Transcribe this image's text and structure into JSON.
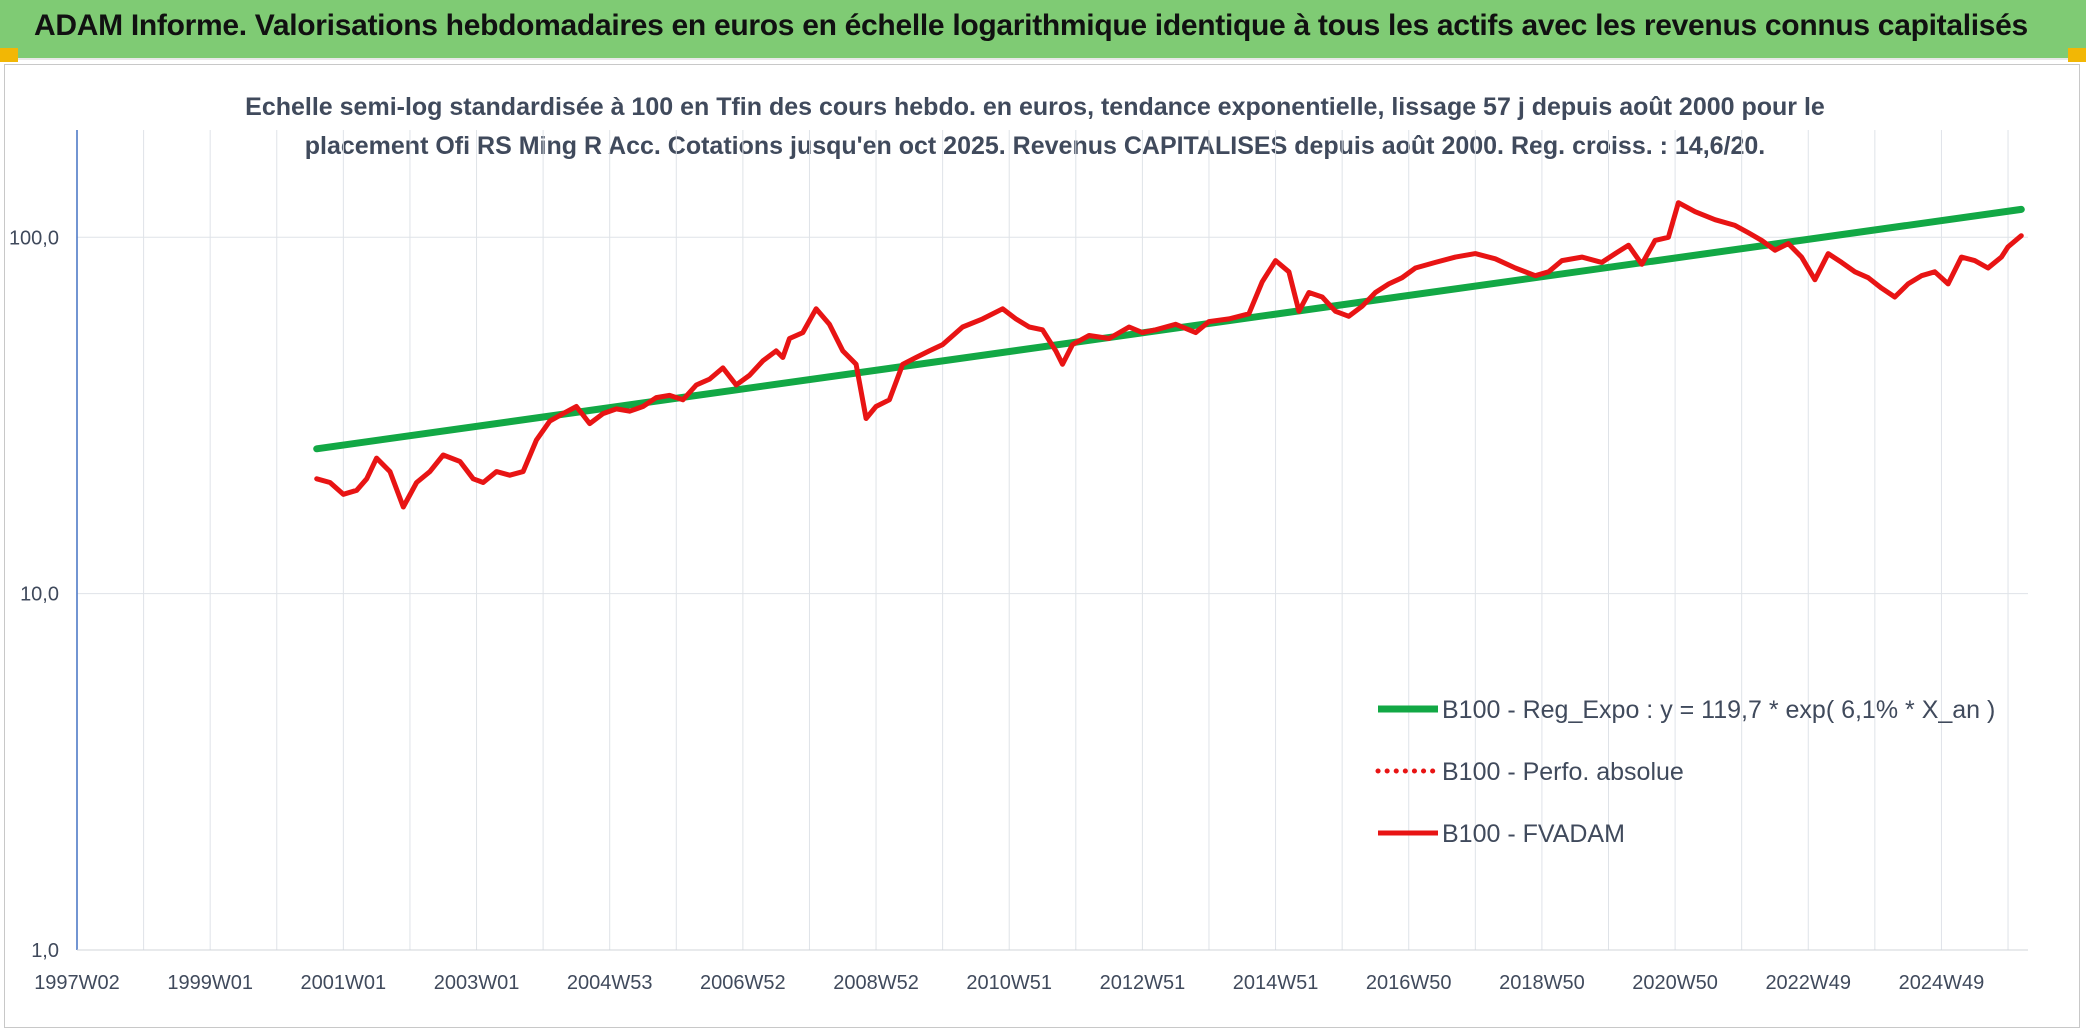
{
  "header": {
    "title": "ADAM Informe. Valorisations hebdomadaires en euros en échelle logarithmique identique à tous les actifs avec les revenus connus capitalisés"
  },
  "colors": {
    "banner": "#7fcb74",
    "corner": "#f2b705",
    "reg": "#12a845",
    "fvadam": "#e81414",
    "perfo": "#e81414"
  },
  "chart_data": {
    "type": "line",
    "title_line1": "Echelle semi-log standardisée à 100 en Tfin des cours hebdo. en euros, tendance exponentielle, lissage 57 j depuis août 2000 pour le",
    "title_line2": "placement Ofi RS Ming R Acc. Cotations jusqu'en oct 2025. Revenus CAPITALISES depuis août 2000. Reg. croiss. : 14,6/20.",
    "y_scale": "log",
    "ylim": [
      1,
      200
    ],
    "xlim": [
      1997.0,
      2026.3
    ],
    "y_ticks": [
      {
        "value": 1,
        "label": "1,0"
      },
      {
        "value": 10,
        "label": "10,0"
      },
      {
        "value": 100,
        "label": "100,0"
      }
    ],
    "x_ticks": [
      {
        "value": 1997.0,
        "label": "1997W02"
      },
      {
        "value": 1999.0,
        "label": "1999W01"
      },
      {
        "value": 2001.0,
        "label": "2001W01"
      },
      {
        "value": 2003.0,
        "label": "2003W01"
      },
      {
        "value": 2005.0,
        "label": "2004W53"
      },
      {
        "value": 2007.0,
        "label": "2006W52"
      },
      {
        "value": 2009.0,
        "label": "2008W52"
      },
      {
        "value": 2011.0,
        "label": "2010W51"
      },
      {
        "value": 2013.0,
        "label": "2012W51"
      },
      {
        "value": 2015.0,
        "label": "2014W51"
      },
      {
        "value": 2017.0,
        "label": "2016W50"
      },
      {
        "value": 2019.0,
        "label": "2018W50"
      },
      {
        "value": 2021.0,
        "label": "2020W50"
      },
      {
        "value": 2023.0,
        "label": "2022W49"
      },
      {
        "value": 2025.0,
        "label": "2024W49"
      }
    ],
    "grid": "vertical and horizontal gridlines",
    "legend_position": "bottom-right",
    "series": [
      {
        "name": "B100 - Reg_Expo : y = 119,7 * exp( 6,1% *  X_an )",
        "style": "solid",
        "color": "#12a845",
        "x": [
          2000.6,
          2026.2
        ],
        "y": [
          25.5,
          119.7
        ]
      },
      {
        "name": "B100 - Perfo. absolue",
        "style": "dotted",
        "color": "#e81414",
        "x": [],
        "y": []
      },
      {
        "name": "B100 - FVADAM",
        "style": "solid",
        "color": "#e81414",
        "x": [
          2000.6,
          2000.8,
          2001.0,
          2001.2,
          2001.35,
          2001.5,
          2001.7,
          2001.9,
          2002.1,
          2002.3,
          2002.5,
          2002.75,
          2002.95,
          2003.1,
          2003.3,
          2003.5,
          2003.7,
          2003.9,
          2004.1,
          2004.3,
          2004.5,
          2004.7,
          2004.9,
          2005.1,
          2005.3,
          2005.5,
          2005.7,
          2005.9,
          2006.1,
          2006.3,
          2006.5,
          2006.7,
          2006.9,
          2007.1,
          2007.3,
          2007.5,
          2007.6,
          2007.7,
          2007.9,
          2008.1,
          2008.3,
          2008.5,
          2008.7,
          2008.85,
          2009.0,
          2009.2,
          2009.4,
          2009.6,
          2009.8,
          2010.0,
          2010.3,
          2010.6,
          2010.9,
          2011.1,
          2011.3,
          2011.5,
          2011.7,
          2011.8,
          2011.95,
          2012.2,
          2012.5,
          2012.8,
          2013.0,
          2013.2,
          2013.5,
          2013.8,
          2014.0,
          2014.3,
          2014.6,
          2014.8,
          2015.0,
          2015.2,
          2015.35,
          2015.5,
          2015.7,
          2015.9,
          2016.1,
          2016.3,
          2016.5,
          2016.7,
          2016.9,
          2017.1,
          2017.4,
          2017.7,
          2018.0,
          2018.3,
          2018.6,
          2018.9,
          2019.1,
          2019.3,
          2019.6,
          2019.9,
          2020.1,
          2020.3,
          2020.5,
          2020.7,
          2020.9,
          2021.05,
          2021.3,
          2021.6,
          2021.9,
          2022.1,
          2022.3,
          2022.5,
          2022.7,
          2022.9,
          2023.1,
          2023.3,
          2023.5,
          2023.7,
          2023.9,
          2024.1,
          2024.3,
          2024.5,
          2024.7,
          2024.9,
          2025.1,
          2025.3,
          2025.5,
          2025.7,
          2025.9,
          2026.0,
          2026.2
        ],
        "y": [
          21.0,
          20.5,
          19.0,
          19.5,
          21.0,
          24.0,
          22.0,
          17.5,
          20.5,
          22.0,
          24.5,
          23.5,
          21.0,
          20.5,
          22.0,
          21.5,
          22.0,
          27.0,
          30.5,
          32.0,
          33.5,
          30.0,
          32.0,
          33.0,
          32.5,
          33.5,
          35.5,
          36.0,
          35.0,
          38.5,
          40.0,
          43.0,
          38.5,
          41.0,
          45.0,
          48.0,
          46.0,
          52.0,
          54.0,
          63.0,
          57.0,
          48.0,
          44.0,
          31.0,
          33.5,
          35.0,
          44.0,
          46.0,
          48.0,
          50.0,
          56.0,
          59.0,
          63.0,
          59.0,
          56.0,
          55.0,
          48.0,
          44.0,
          50.0,
          53.0,
          52.0,
          56.0,
          54.0,
          55.0,
          57.0,
          54.0,
          58.0,
          59.0,
          61.0,
          75.0,
          86.0,
          80.0,
          62.0,
          70.0,
          68.0,
          62.0,
          60.0,
          64.0,
          70.0,
          74.0,
          77.0,
          82.0,
          85.0,
          88.0,
          90.0,
          87.0,
          82.0,
          78.0,
          80.0,
          86.0,
          88.0,
          85.0,
          90.0,
          95.0,
          84.0,
          98.0,
          100.0,
          125.0,
          118.0,
          112.0,
          108.0,
          103.0,
          98.0,
          92.0,
          96.0,
          88.0,
          76.0,
          90.0,
          85.0,
          80.0,
          77.0,
          72.0,
          68.0,
          74.0,
          78.0,
          80.0,
          74.0,
          88.0,
          86.0,
          82.0,
          88.0,
          94.0,
          101.0
        ]
      }
    ]
  }
}
